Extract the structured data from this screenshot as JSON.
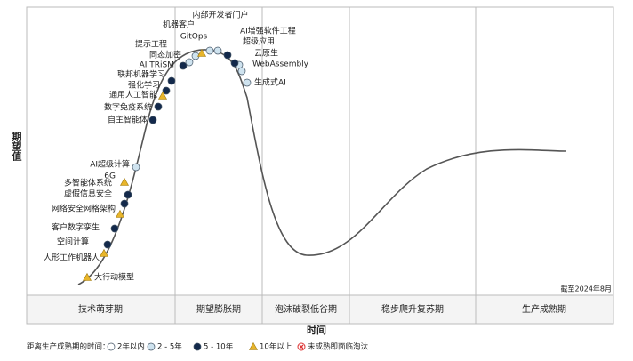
{
  "axis": {
    "y_label": "期望值",
    "x_label": "时间",
    "date_note": "截至2024年8月"
  },
  "phases": [
    "技术萌芽期",
    "期望膨胀期",
    "泡沫破裂低谷期",
    "稳步爬升复苏期",
    "生产成熟期"
  ],
  "legend": {
    "title": "距离生产成熟期的时间：",
    "items": [
      {
        "label": "2年以内",
        "nodes": []
      },
      {
        "label": "2 - 5年",
        "nodes": [
          "AI超级计算",
          "同态加密",
          "提示工程",
          "机器客户",
          "内部开发者门户",
          "云原生",
          "WebAssembly",
          "生成式AI"
        ]
      },
      {
        "label": "5 - 10年",
        "nodes": [
          "空间计算",
          "客户数字孪生",
          "虚假信息安全",
          "多智能体系统",
          "自主智能体",
          "数字免疫系统",
          "强化学习",
          "联邦机器学习",
          "AI TRiSM",
          "AI增强软件工程",
          "超级应用"
        ]
      },
      {
        "label": "10年以上",
        "nodes": [
          "大行动模型",
          "人形工作机器人",
          "网络安全网格架构",
          "6G",
          "通用人工智能",
          "GitOps"
        ]
      },
      {
        "label": "未成熟即面临淘汰",
        "nodes": []
      }
    ]
  }
}
